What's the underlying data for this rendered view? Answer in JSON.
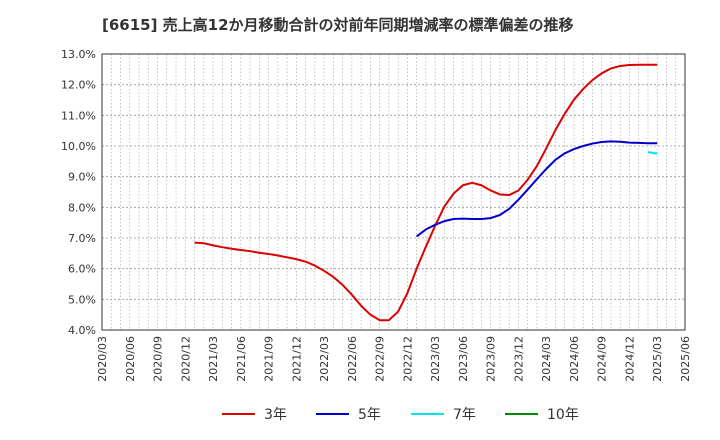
{
  "chart_data": {
    "type": "line",
    "title": "[6615]  売上高12か月移動合計の対前年同期増減率の標準偏差の推移",
    "xlabel": "",
    "ylabel": "",
    "ylim": [
      4.0,
      13.0
    ],
    "yticks": [
      "4.0%",
      "5.0%",
      "6.0%",
      "7.0%",
      "8.0%",
      "9.0%",
      "10.0%",
      "11.0%",
      "12.0%",
      "13.0%"
    ],
    "ytick_values": [
      4,
      5,
      6,
      7,
      8,
      9,
      10,
      11,
      12,
      13
    ],
    "xticks": [
      "2020/03",
      "2020/06",
      "2020/09",
      "2020/12",
      "2021/03",
      "2021/06",
      "2021/09",
      "2021/12",
      "2022/03",
      "2022/06",
      "2022/09",
      "2022/12",
      "2023/03",
      "2023/06",
      "2023/09",
      "2023/12",
      "2024/03",
      "2024/06",
      "2024/09",
      "2024/12",
      "2025/03",
      "2025/06"
    ],
    "grid": true,
    "legend_position": "bottom",
    "series": [
      {
        "name": "3年",
        "color": "#dd0000",
        "x": [
          "2021/01",
          "2021/02",
          "2021/03",
          "2021/04",
          "2021/05",
          "2021/06",
          "2021/07",
          "2021/08",
          "2021/09",
          "2021/10",
          "2021/11",
          "2021/12",
          "2022/01",
          "2022/02",
          "2022/03",
          "2022/04",
          "2022/05",
          "2022/06",
          "2022/07",
          "2022/08",
          "2022/09",
          "2022/10",
          "2022/11",
          "2022/12",
          "2023/01",
          "2023/02",
          "2023/03",
          "2023/04",
          "2023/05",
          "2023/06",
          "2023/07",
          "2023/08",
          "2023/09",
          "2023/10",
          "2023/11",
          "2023/12",
          "2024/01",
          "2024/02",
          "2024/03",
          "2024/04",
          "2024/05",
          "2024/06",
          "2024/07",
          "2024/08",
          "2024/09",
          "2024/10",
          "2024/11",
          "2024/12",
          "2025/01",
          "2025/02",
          "2025/03"
        ],
        "values": [
          6.85,
          6.83,
          6.76,
          6.7,
          6.65,
          6.61,
          6.57,
          6.52,
          6.48,
          6.43,
          6.37,
          6.31,
          6.23,
          6.1,
          5.93,
          5.73,
          5.47,
          5.15,
          4.79,
          4.5,
          4.32,
          4.32,
          4.6,
          5.2,
          6.0,
          6.72,
          7.4,
          8.03,
          8.45,
          8.72,
          8.8,
          8.72,
          8.55,
          8.42,
          8.4,
          8.55,
          8.9,
          9.35,
          9.92,
          10.52,
          11.05,
          11.51,
          11.86,
          12.15,
          12.37,
          12.53,
          12.61,
          12.64,
          12.65,
          12.65,
          12.65
        ]
      },
      {
        "name": "5年",
        "color": "#0000cc",
        "x": [
          "2023/01",
          "2023/02",
          "2023/03",
          "2023/04",
          "2023/05",
          "2023/06",
          "2023/07",
          "2023/08",
          "2023/09",
          "2023/10",
          "2023/11",
          "2023/12",
          "2024/01",
          "2024/02",
          "2024/03",
          "2024/04",
          "2024/05",
          "2024/06",
          "2024/07",
          "2024/08",
          "2024/09",
          "2024/10",
          "2024/11",
          "2024/12",
          "2025/01",
          "2025/02",
          "2025/03"
        ],
        "values": [
          7.05,
          7.28,
          7.43,
          7.55,
          7.62,
          7.63,
          7.62,
          7.62,
          7.65,
          7.75,
          7.95,
          8.25,
          8.58,
          8.92,
          9.25,
          9.55,
          9.76,
          9.9,
          10.0,
          10.08,
          10.13,
          10.15,
          10.14,
          10.11,
          10.1,
          10.09,
          10.09
        ]
      },
      {
        "name": "7年",
        "color": "#00e5ee",
        "x": [
          "2025/02",
          "2025/03"
        ],
        "values": [
          9.8,
          9.75
        ]
      },
      {
        "name": "10年",
        "color": "#008800",
        "x": [],
        "values": []
      }
    ]
  }
}
